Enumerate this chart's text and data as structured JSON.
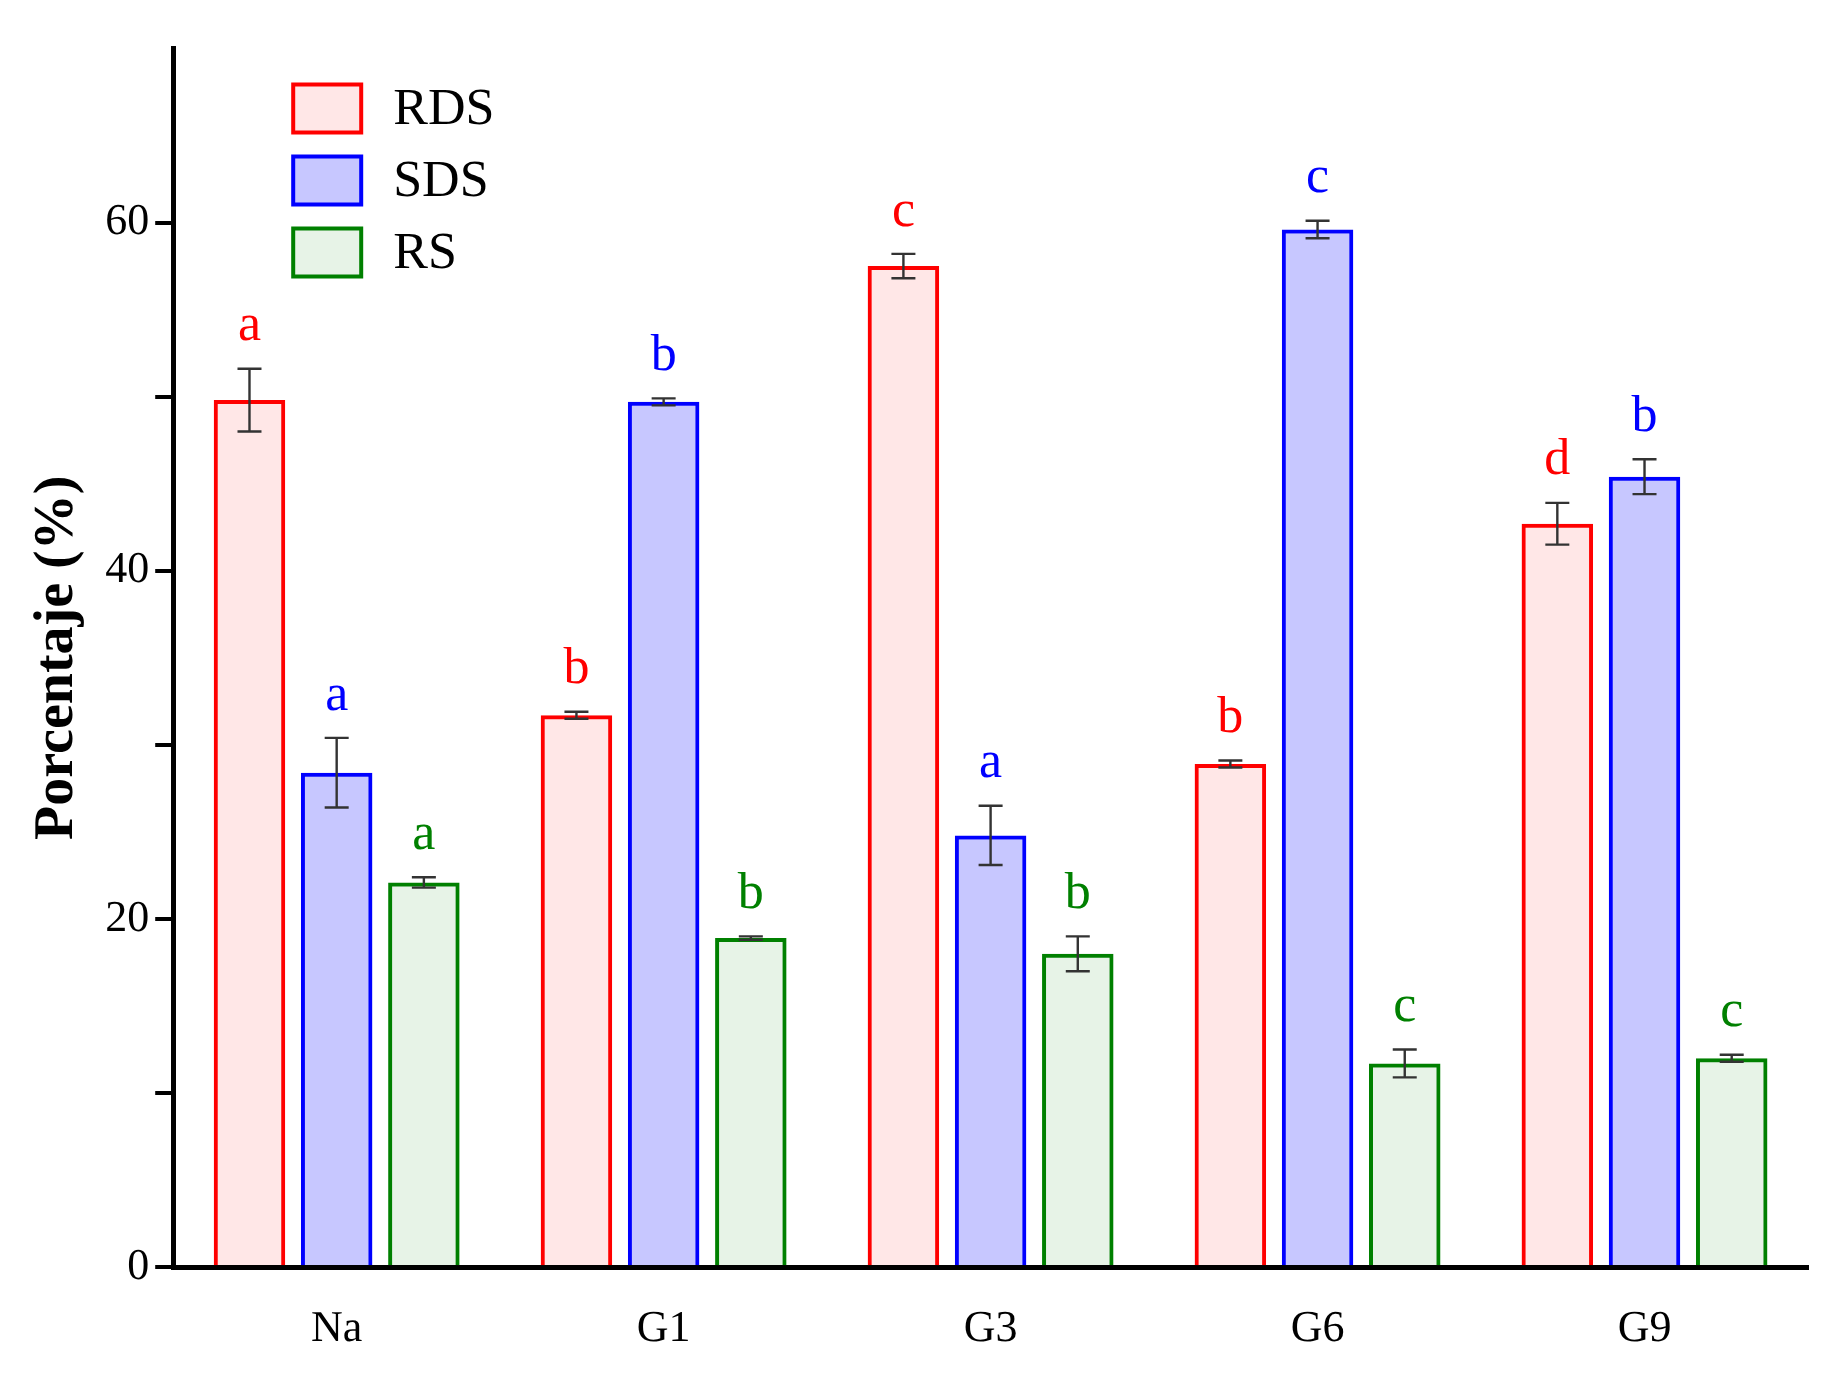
{
  "chart_data": {
    "type": "bar",
    "ylabel": "Porcentaje (%)",
    "categories": [
      "Na",
      "G1",
      "G3",
      "G6",
      "G9"
    ],
    "series": [
      {
        "name": "RDS",
        "color": "#ff0000",
        "values": [
          49.8,
          31.7,
          57.5,
          28.9,
          42.7
        ],
        "errors": [
          1.8,
          0.2,
          0.7,
          0.2,
          1.2
        ]
      },
      {
        "name": "SDS",
        "color": "#0000ff",
        "values": [
          28.4,
          49.7,
          24.8,
          59.6,
          45.4
        ],
        "errors": [
          2.0,
          0.2,
          1.7,
          0.5,
          1.0
        ]
      },
      {
        "name": "RS",
        "color": "#008000",
        "values": [
          22.1,
          18.9,
          18.0,
          11.7,
          12.0
        ],
        "errors": [
          0.3,
          0.1,
          1.0,
          0.8,
          0.2
        ]
      }
    ],
    "ylim": [
      0,
      70
    ],
    "yticks": [
      0,
      {
        "value": 10,
        "label": null
      },
      20,
      {
        "value": 30,
        "label": null
      },
      40,
      {
        "value": 50,
        "label": null
      },
      60
    ],
    "grid": false,
    "legend": "top left",
    "annotations": [
      "a",
      "b",
      "c",
      "b",
      "d",
      "a",
      "b",
      "a",
      "c",
      "b",
      "a",
      "b",
      "b",
      "c",
      "c"
    ]
  }
}
